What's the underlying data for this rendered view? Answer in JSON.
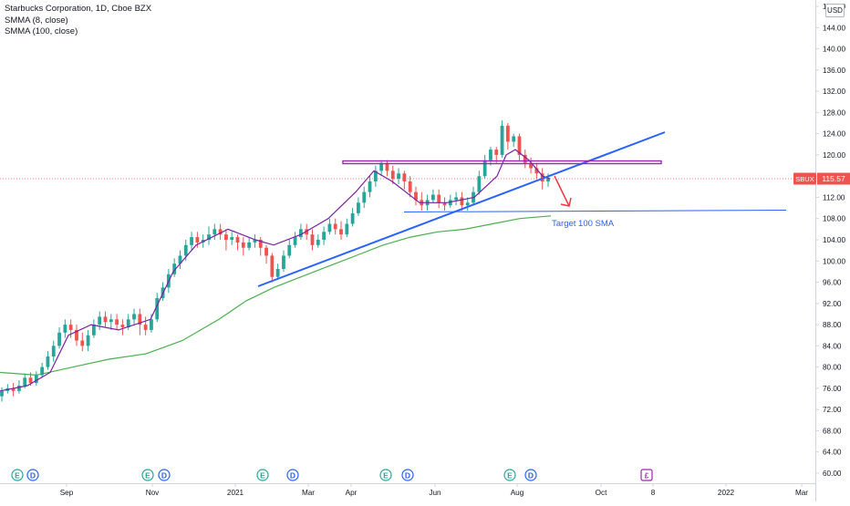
{
  "legend": {
    "symbol_title": "Starbucks Corporation, 1D, Cboe BZX",
    "indicator_1": "SMMA (8, close)",
    "indicator_2": "SMMA (100, close)"
  },
  "currency_badge": "USD",
  "price_tag": {
    "symbol": "SBUX",
    "value": "115.57",
    "color": "#ef5350"
  },
  "annotation": {
    "text": "Target 100 SMA",
    "color": "#2962ff"
  },
  "colors": {
    "up": "#26a69a",
    "down": "#ef5350",
    "smma8": "#7b1fa2",
    "smma100": "#4caf50",
    "trendline": "#2962ff",
    "resistance": "#9c27b0",
    "arrow": "#f23645",
    "earnings": "#26a69a",
    "dividends": "#2962ff",
    "split": "#9c27b0"
  },
  "chart_data": {
    "type": "candlestick",
    "ylim": [
      58.0,
      150.0
    ],
    "y_ticks": [
      "60.00",
      "64.00",
      "68.00",
      "72.00",
      "76.00",
      "80.00",
      "84.00",
      "88.00",
      "92.00",
      "96.00",
      "100.00",
      "104.00",
      "108.00",
      "112.00",
      "116.00",
      "120.00",
      "124.00",
      "128.00",
      "132.00",
      "136.00",
      "140.00",
      "144.00",
      "148.00"
    ],
    "x_ticks": [
      "Sep",
      "Nov",
      "2021",
      "Mar",
      "Apr",
      "Jun",
      "Aug",
      "Oct",
      "8",
      "2022",
      "Mar"
    ],
    "series": [
      {
        "name": "SMMA (8, close)",
        "path": [
          [
            0,
            75.5
          ],
          [
            30,
            76.5
          ],
          [
            55,
            79
          ],
          [
            75,
            86
          ],
          [
            100,
            88
          ],
          [
            130,
            87
          ],
          [
            165,
            89
          ],
          [
            190,
            98
          ],
          [
            215,
            103
          ],
          [
            250,
            106
          ],
          [
            280,
            104
          ],
          [
            300,
            103
          ],
          [
            330,
            105
          ],
          [
            360,
            108
          ],
          [
            390,
            113
          ],
          [
            410,
            117
          ],
          [
            430,
            115
          ],
          [
            460,
            111
          ],
          [
            490,
            111
          ],
          [
            520,
            112
          ],
          [
            545,
            116
          ],
          [
            555,
            120
          ],
          [
            565,
            121
          ],
          [
            580,
            119
          ],
          [
            595,
            116
          ],
          [
            603,
            115.5
          ]
        ]
      },
      {
        "name": "SMMA (100, close)",
        "path": [
          [
            0,
            79
          ],
          [
            40,
            78.5
          ],
          [
            80,
            80
          ],
          [
            120,
            81.5
          ],
          [
            160,
            82.5
          ],
          [
            200,
            85
          ],
          [
            240,
            89
          ],
          [
            270,
            92.5
          ],
          [
            300,
            95
          ],
          [
            330,
            97
          ],
          [
            360,
            99
          ],
          [
            390,
            101
          ],
          [
            420,
            103
          ],
          [
            450,
            104.5
          ],
          [
            480,
            105.5
          ],
          [
            510,
            106
          ],
          [
            540,
            107
          ],
          [
            570,
            108
          ],
          [
            604,
            108.5
          ]
        ]
      }
    ],
    "candles_approx": [
      [
        74.5,
        75.5,
        73.5,
        76.2
      ],
      [
        75.5,
        76,
        75,
        76.8
      ],
      [
        76,
        75.5,
        74.5,
        77
      ],
      [
        75.5,
        76.5,
        75,
        77.5
      ],
      [
        76.5,
        78,
        76,
        78.8
      ],
      [
        78,
        77,
        76.5,
        79
      ],
      [
        77,
        78.5,
        76.5,
        79.2
      ],
      [
        78.5,
        80,
        78,
        80.8
      ],
      [
        80,
        82,
        79.5,
        83
      ],
      [
        82,
        84,
        81,
        85
      ],
      [
        84,
        86.5,
        83.5,
        87.5
      ],
      [
        86.5,
        88,
        85.5,
        89
      ],
      [
        88,
        87,
        85.5,
        89
      ],
      [
        87,
        85,
        84,
        88
      ],
      [
        85,
        84,
        83,
        86.5
      ],
      [
        84,
        86,
        83,
        87
      ],
      [
        86,
        88,
        85.5,
        89
      ],
      [
        88,
        89.5,
        87,
        90.5
      ],
      [
        89.5,
        88.5,
        87.5,
        90.5
      ],
      [
        88.5,
        89,
        87,
        90
      ],
      [
        89,
        88,
        87,
        90
      ],
      [
        88,
        87.5,
        86,
        89
      ],
      [
        87.5,
        89,
        87,
        90
      ],
      [
        89,
        90,
        88,
        91
      ],
      [
        90,
        88,
        86,
        91
      ],
      [
        88,
        87,
        86,
        89.5
      ],
      [
        87,
        89,
        86.5,
        90
      ],
      [
        89,
        93,
        88.5,
        94
      ],
      [
        93,
        95,
        92.5,
        96
      ],
      [
        95,
        97.5,
        94,
        98.5
      ],
      [
        97.5,
        99.5,
        97,
        100.5
      ],
      [
        99.5,
        101,
        98.5,
        102
      ],
      [
        101,
        103,
        100,
        104
      ],
      [
        103,
        104.5,
        102,
        105.5
      ],
      [
        104.5,
        103.5,
        102.5,
        105.5
      ],
      [
        103.5,
        104,
        102.5,
        105
      ],
      [
        104,
        105,
        103,
        106.5
      ],
      [
        105,
        106,
        104,
        107
      ],
      [
        106,
        105,
        104,
        107
      ],
      [
        105,
        104,
        102,
        106
      ],
      [
        104,
        104.5,
        103,
        105.5
      ],
      [
        104.5,
        103.5,
        102,
        105
      ],
      [
        103.5,
        102.5,
        101,
        104.5
      ],
      [
        102.5,
        103.5,
        102,
        104.5
      ],
      [
        103.5,
        104,
        102.5,
        105
      ],
      [
        104,
        102.5,
        101,
        104.5
      ],
      [
        102.5,
        101,
        99.5,
        103
      ],
      [
        101,
        97,
        96,
        101.5
      ],
      [
        97,
        98.5,
        96.5,
        99.5
      ],
      [
        98.5,
        101,
        98,
        102
      ],
      [
        101,
        103,
        100.5,
        104
      ],
      [
        103,
        104.5,
        102.5,
        105.5
      ],
      [
        104.5,
        106,
        104,
        107
      ],
      [
        106,
        105,
        104,
        107
      ],
      [
        105,
        103,
        102,
        106
      ],
      [
        103,
        104,
        102.5,
        105
      ],
      [
        104,
        105.5,
        103,
        106.5
      ],
      [
        105.5,
        107,
        105,
        108
      ],
      [
        107,
        106,
        105,
        108
      ],
      [
        106,
        105,
        104,
        107.5
      ],
      [
        105,
        107,
        104.5,
        108
      ],
      [
        107,
        109,
        106.5,
        110
      ],
      [
        109,
        111,
        108.5,
        112
      ],
      [
        111,
        113,
        110,
        114
      ],
      [
        113,
        115,
        112,
        116
      ],
      [
        115,
        117,
        114,
        118
      ],
      [
        117,
        118.5,
        116,
        119
      ],
      [
        118.5,
        117,
        116,
        119
      ],
      [
        117,
        115.5,
        114.5,
        118
      ],
      [
        115.5,
        116.5,
        114.5,
        117.5
      ],
      [
        116.5,
        115,
        113.5,
        117
      ],
      [
        115,
        113,
        112,
        116
      ],
      [
        113,
        111.5,
        110.5,
        114
      ],
      [
        111.5,
        110.5,
        109.5,
        113
      ],
      [
        110.5,
        111.5,
        109.5,
        112.5
      ],
      [
        111.5,
        112.5,
        111,
        113.5
      ],
      [
        112.5,
        111,
        110,
        113.5
      ],
      [
        111,
        110.5,
        109.5,
        112
      ],
      [
        110.5,
        111.5,
        110,
        112.5
      ],
      [
        111.5,
        112,
        110.5,
        113
      ],
      [
        112,
        110.5,
        109.5,
        113
      ],
      [
        110.5,
        111,
        109.5,
        112
      ],
      [
        111,
        113,
        110.5,
        114
      ],
      [
        113,
        116,
        112.5,
        117
      ],
      [
        116,
        119,
        115.5,
        120
      ],
      [
        119,
        121,
        118,
        121.5
      ],
      [
        121,
        120,
        118.5,
        121.5
      ],
      [
        120,
        125.5,
        119.5,
        126.5
      ],
      [
        125.5,
        122.5,
        121,
        126
      ],
      [
        122.5,
        123.5,
        121.5,
        124
      ],
      [
        123.5,
        120,
        119,
        124
      ],
      [
        120,
        118.5,
        117.5,
        121
      ],
      [
        118.5,
        117.5,
        116.5,
        119.5
      ],
      [
        117.5,
        116.5,
        115.5,
        118.5
      ],
      [
        116.5,
        115,
        113.5,
        117.5
      ],
      [
        115,
        115.6,
        114,
        116.5
      ]
    ]
  }
}
